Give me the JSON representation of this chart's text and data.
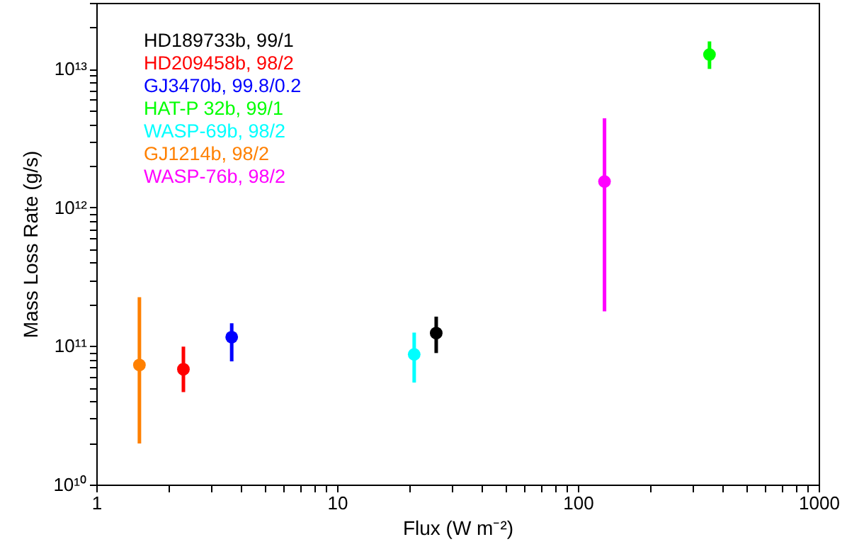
{
  "chart_data": {
    "type": "scatter",
    "xlabel": "Flux (W m⁻²)",
    "ylabel": "Mass Loss Rate (g/s)",
    "log": "xy",
    "grid": false,
    "legend": "top left",
    "marker": "circle",
    "xlim": [
      1,
      1000
    ],
    "ylim": [
      10000000000.0,
      30000000000000.0
    ],
    "xticks": [
      1,
      {
        "value": 2,
        "label": null
      },
      {
        "value": 3,
        "label": null
      },
      {
        "value": 4,
        "label": null
      },
      {
        "value": 5,
        "label": null
      },
      {
        "value": 6,
        "label": null
      },
      {
        "value": 7,
        "label": null
      },
      {
        "value": 8,
        "label": null
      },
      {
        "value": 9,
        "label": null
      },
      10,
      {
        "value": 20,
        "label": null
      },
      {
        "value": 30,
        "label": null
      },
      {
        "value": 40,
        "label": null
      },
      {
        "value": 50,
        "label": null
      },
      {
        "value": 60,
        "label": null
      },
      {
        "value": 70,
        "label": null
      },
      {
        "value": 80,
        "label": null
      },
      {
        "value": 90,
        "label": null
      },
      100,
      {
        "value": 200,
        "label": null
      },
      {
        "value": 300,
        "label": null
      },
      {
        "value": 400,
        "label": null
      },
      {
        "value": 500,
        "label": null
      },
      {
        "value": 600,
        "label": null
      },
      {
        "value": 700,
        "label": null
      },
      {
        "value": 800,
        "label": null
      },
      {
        "value": 900,
        "label": null
      },
      1000
    ],
    "yticks": [
      {
        "value": 10000000000.0,
        "label": "10¹⁰"
      },
      {
        "value": 20000000000.0,
        "label": null
      },
      {
        "value": 30000000000.0,
        "label": null
      },
      {
        "value": 40000000000.0,
        "label": null
      },
      {
        "value": 50000000000.0,
        "label": null
      },
      {
        "value": 60000000000.0,
        "label": null
      },
      {
        "value": 70000000000.0,
        "label": null
      },
      {
        "value": 80000000000.0,
        "label": null
      },
      {
        "value": 90000000000.0,
        "label": null
      },
      {
        "value": 100000000000.0,
        "label": "10¹¹"
      },
      {
        "value": 200000000000.0,
        "label": null
      },
      {
        "value": 300000000000.0,
        "label": null
      },
      {
        "value": 400000000000.0,
        "label": null
      },
      {
        "value": 500000000000.0,
        "label": null
      },
      {
        "value": 600000000000.0,
        "label": null
      },
      {
        "value": 700000000000.0,
        "label": null
      },
      {
        "value": 800000000000.0,
        "label": null
      },
      {
        "value": 900000000000.0,
        "label": null
      },
      {
        "value": 1000000000000.0,
        "label": "10¹²"
      },
      {
        "value": 2000000000000.0,
        "label": null
      },
      {
        "value": 3000000000000.0,
        "label": null
      },
      {
        "value": 4000000000000.0,
        "label": null
      },
      {
        "value": 5000000000000.0,
        "label": null
      },
      {
        "value": 6000000000000.0,
        "label": null
      },
      {
        "value": 7000000000000.0,
        "label": null
      },
      {
        "value": 8000000000000.0,
        "label": null
      },
      {
        "value": 9000000000000.0,
        "label": null
      },
      {
        "value": 10000000000000.0,
        "label": "10¹³"
      },
      {
        "value": 20000000000000.0,
        "label": null
      },
      {
        "value": 30000000000000.0,
        "label": null
      }
    ],
    "series": [
      {
        "name": "HD189733b, 99/1",
        "color": "#000000",
        "x": [
          25.8
        ],
        "values": [
          124000000000.0
        ],
        "errors": [
          [
            89000000000.0,
            163000000000.0
          ]
        ]
      },
      {
        "name": "HD209458b, 98/2",
        "color": "#ff0000",
        "x": [
          2.3
        ],
        "values": [
          68000000000.0
        ],
        "errors": [
          [
            46500000000.0,
            99000000000.0
          ]
        ]
      },
      {
        "name": "GJ3470b, 99.8/0.2",
        "color": "#0000ff",
        "x": [
          3.65
        ],
        "values": [
          116000000000.0
        ],
        "errors": [
          [
            77500000000.0,
            146000000000.0
          ]
        ]
      },
      {
        "name": "HAT-P 32b, 99/1",
        "color": "#00ff00",
        "x": [
          352
        ],
        "values": [
          12700000000000.0
        ],
        "errors": [
          [
            10000000000000.0,
            15800000000000.0
          ]
        ]
      },
      {
        "name": "WASP-69b, 98/2",
        "color": "#00ffff",
        "x": [
          20.9
        ],
        "values": [
          87000000000.0
        ],
        "errors": [
          [
            54500000000.0,
            125000000000.0
          ]
        ]
      },
      {
        "name": "GJ1214b, 98/2",
        "color": "#ff8000",
        "x": [
          1.51
        ],
        "values": [
          73000000000.0
        ],
        "errors": [
          [
            19800000000.0,
            225000000000.0
          ]
        ]
      },
      {
        "name": "WASP-76b, 98/2",
        "color": "#ff00ff",
        "x": [
          129
        ],
        "values": [
          1540000000000.0
        ],
        "errors": [
          [
            178000000000.0,
            4400000000000.0
          ]
        ]
      }
    ]
  }
}
